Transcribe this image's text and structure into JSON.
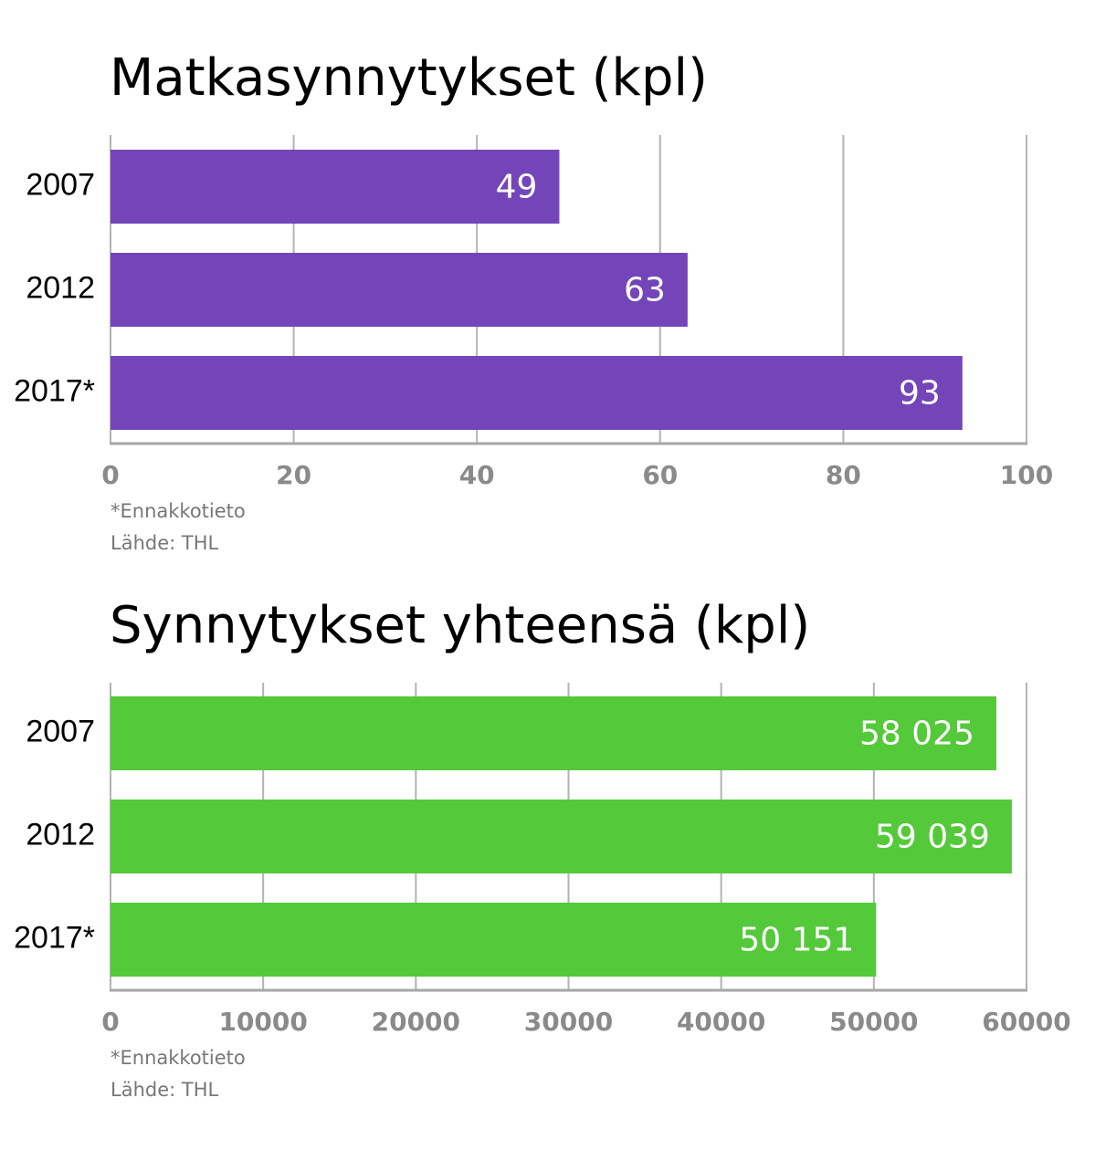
{
  "chart_data": [
    {
      "type": "bar",
      "orientation": "horizontal",
      "title": "Matkasynnytykset (kpl)",
      "categories": [
        "2007",
        "2012",
        "2017*"
      ],
      "values": [
        49,
        63,
        93
      ],
      "value_labels": [
        "49",
        "63",
        "93"
      ],
      "xlim": [
        0,
        100
      ],
      "xticks": [
        0,
        20,
        40,
        60,
        80,
        100
      ],
      "xtick_labels": [
        "0",
        "20",
        "40",
        "60",
        "80",
        "100"
      ],
      "grid": true,
      "bar_color": "#7445b8",
      "notes": [
        "*Ennakkotieto",
        "Lähde: THL"
      ]
    },
    {
      "type": "bar",
      "orientation": "horizontal",
      "title": "Synnytykset yhteensä (kpl)",
      "categories": [
        "2007",
        "2012",
        "2017*"
      ],
      "values": [
        58025,
        59039,
        50151
      ],
      "value_labels": [
        "58 025",
        "59 039",
        "50 151"
      ],
      "xlim": [
        0,
        60000
      ],
      "xticks": [
        0,
        10000,
        20000,
        30000,
        40000,
        50000,
        60000
      ],
      "xtick_labels": [
        "0",
        "10000",
        "20000",
        "30000",
        "40000",
        "50000",
        "60000"
      ],
      "grid": true,
      "bar_color": "#54c93a",
      "notes": [
        "*Ennakkotieto",
        "Lähde: THL"
      ]
    }
  ]
}
